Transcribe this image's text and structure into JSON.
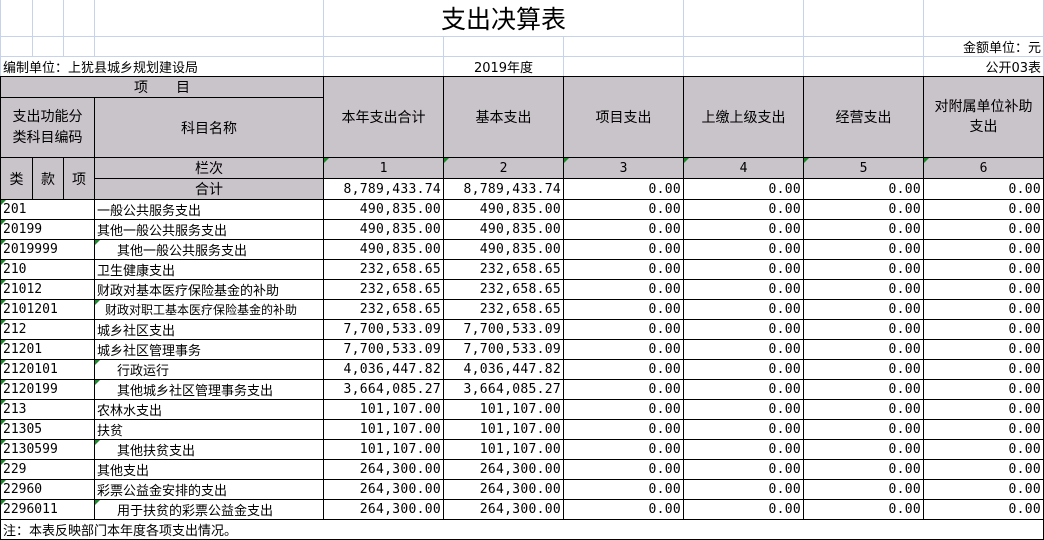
{
  "title": "支出决算表",
  "unit_label": "金额单位：元",
  "org_label": "编制单位：上犹县城乡规划建设局",
  "year_label": "2019年度",
  "table_no": "公开03表",
  "header": {
    "item": "项　　目",
    "code_header": "支出功能分类科目编码",
    "name_header": "科目名称",
    "columns": [
      "本年支出合计",
      "基本支出",
      "项目支出",
      "上缴上级支出",
      "经营支出",
      "对附属单位补助支出"
    ],
    "lei": "类",
    "kuan": "款",
    "xiang": "项",
    "lanci": "栏次",
    "col_numbers": [
      "1",
      "2",
      "3",
      "4",
      "5",
      "6"
    ]
  },
  "total": {
    "label": "合计",
    "values": [
      "8,789,433.74",
      "8,789,433.74",
      "0.00",
      "0.00",
      "0.00",
      "0.00"
    ]
  },
  "rows": [
    {
      "code": "201",
      "name": "一般公共服务支出",
      "level": 1,
      "values": [
        "490,835.00",
        "490,835.00",
        "0.00",
        "0.00",
        "0.00",
        "0.00"
      ]
    },
    {
      "code": "20199",
      "name": "其他一般公共服务支出",
      "level": 2,
      "values": [
        "490,835.00",
        "490,835.00",
        "0.00",
        "0.00",
        "0.00",
        "0.00"
      ]
    },
    {
      "code": "2019999",
      "name": "其他一般公共服务支出",
      "level": 3,
      "values": [
        "490,835.00",
        "490,835.00",
        "0.00",
        "0.00",
        "0.00",
        "0.00"
      ]
    },
    {
      "code": "210",
      "name": "卫生健康支出",
      "level": 1,
      "values": [
        "232,658.65",
        "232,658.65",
        "0.00",
        "0.00",
        "0.00",
        "0.00"
      ]
    },
    {
      "code": "21012",
      "name": "财政对基本医疗保险基金的补助",
      "level": 2,
      "values": [
        "232,658.65",
        "232,658.65",
        "0.00",
        "0.00",
        "0.00",
        "0.00"
      ]
    },
    {
      "code": "2101201",
      "name": "财政对职工基本医疗保险基金的补助",
      "level": 4,
      "values": [
        "232,658.65",
        "232,658.65",
        "0.00",
        "0.00",
        "0.00",
        "0.00"
      ]
    },
    {
      "code": "212",
      "name": "城乡社区支出",
      "level": 1,
      "values": [
        "7,700,533.09",
        "7,700,533.09",
        "0.00",
        "0.00",
        "0.00",
        "0.00"
      ]
    },
    {
      "code": "21201",
      "name": "城乡社区管理事务",
      "level": 2,
      "values": [
        "7,700,533.09",
        "7,700,533.09",
        "0.00",
        "0.00",
        "0.00",
        "0.00"
      ]
    },
    {
      "code": "2120101",
      "name": "行政运行",
      "level": 3,
      "values": [
        "4,036,447.82",
        "4,036,447.82",
        "0.00",
        "0.00",
        "0.00",
        "0.00"
      ]
    },
    {
      "code": "2120199",
      "name": "其他城乡社区管理事务支出",
      "level": 3,
      "values": [
        "3,664,085.27",
        "3,664,085.27",
        "0.00",
        "0.00",
        "0.00",
        "0.00"
      ]
    },
    {
      "code": "213",
      "name": "农林水支出",
      "level": 1,
      "values": [
        "101,107.00",
        "101,107.00",
        "0.00",
        "0.00",
        "0.00",
        "0.00"
      ]
    },
    {
      "code": "21305",
      "name": "扶贫",
      "level": 2,
      "values": [
        "101,107.00",
        "101,107.00",
        "0.00",
        "0.00",
        "0.00",
        "0.00"
      ]
    },
    {
      "code": "2130599",
      "name": "其他扶贫支出",
      "level": 3,
      "values": [
        "101,107.00",
        "101,107.00",
        "0.00",
        "0.00",
        "0.00",
        "0.00"
      ]
    },
    {
      "code": "229",
      "name": "其他支出",
      "level": 1,
      "values": [
        "264,300.00",
        "264,300.00",
        "0.00",
        "0.00",
        "0.00",
        "0.00"
      ]
    },
    {
      "code": "22960",
      "name": "彩票公益金安排的支出",
      "level": 2,
      "values": [
        "264,300.00",
        "264,300.00",
        "0.00",
        "0.00",
        "0.00",
        "0.00"
      ]
    },
    {
      "code": "2296011",
      "name": "用于扶贫的彩票公益金支出",
      "level": 3,
      "values": [
        "264,300.00",
        "264,300.00",
        "0.00",
        "0.00",
        "0.00",
        "0.00"
      ]
    }
  ],
  "note": "注：本表反映部门本年度各项支出情况。"
}
